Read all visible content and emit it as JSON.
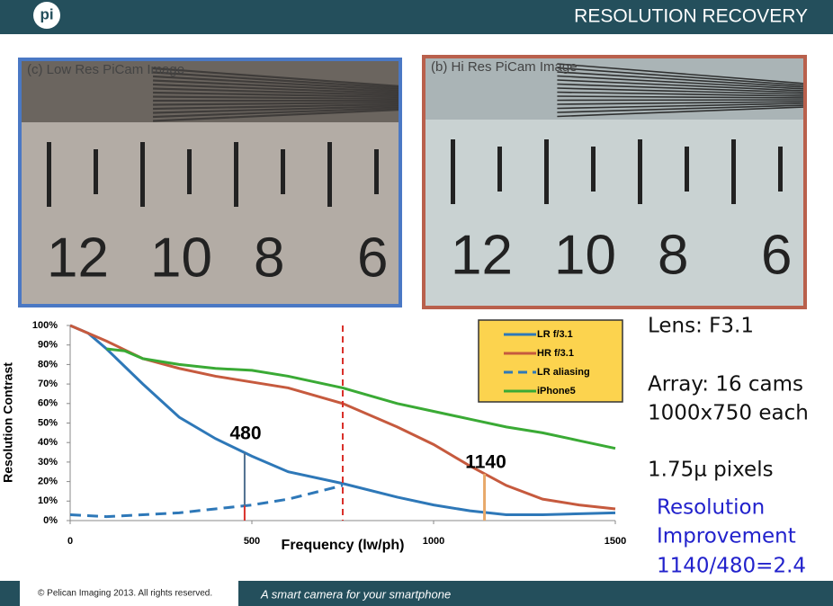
{
  "header": {
    "title": "RESOLUTION RECOVERY",
    "logo": "pi"
  },
  "images": [
    {
      "caption": "(c) Low Res   PiCam Image",
      "border": "#4a78c4",
      "labels": [
        "12",
        "10",
        "8",
        "6"
      ]
    },
    {
      "caption": "(b) Hi Res   PiCam Image",
      "border": "#b9604c",
      "labels": [
        "12",
        "10",
        "8",
        "6"
      ]
    }
  ],
  "chart_data": {
    "type": "line",
    "xlabel": "Frequency (lw/ph)",
    "ylabel": "Resolution Contrast",
    "xlim": [
      0,
      1500
    ],
    "ylim": [
      0,
      100
    ],
    "xticks": [
      0,
      500,
      1000,
      1500
    ],
    "yticks": [
      {
        "value": 0,
        "label": "0%"
      },
      {
        "value": 10,
        "label": "10%"
      },
      {
        "value": 20,
        "label": "20%"
      },
      {
        "value": 30,
        "label": "30%"
      },
      {
        "value": 40,
        "label": "40%"
      },
      {
        "value": 50,
        "label": "50%"
      },
      {
        "value": 60,
        "label": "60%"
      },
      {
        "value": 70,
        "label": "70%"
      },
      {
        "value": 80,
        "label": "80%"
      },
      {
        "value": 90,
        "label": "90%"
      },
      {
        "value": 100,
        "label": "100%"
      }
    ],
    "series": [
      {
        "name": "LR f/3.1",
        "color": "#2e78b8",
        "style": "solid",
        "x": [
          0,
          50,
          100,
          200,
          300,
          400,
          500,
          600,
          750,
          900,
          1000,
          1100,
          1200,
          1300,
          1500
        ],
        "values": [
          100,
          96,
          88,
          70,
          53,
          42,
          33,
          25,
          19,
          12,
          8,
          5,
          3,
          3,
          4
        ]
      },
      {
        "name": "HR f/3.1",
        "color": "#c65a3e",
        "style": "solid",
        "x": [
          0,
          100,
          200,
          300,
          400,
          500,
          600,
          750,
          900,
          1000,
          1100,
          1200,
          1300,
          1400,
          1500
        ],
        "values": [
          100,
          92,
          83,
          78,
          74,
          71,
          68,
          60,
          48,
          39,
          28,
          18,
          11,
          8,
          6
        ]
      },
      {
        "name": "LR aliasing",
        "color": "#2e78b8",
        "style": "dashed",
        "x": [
          0,
          100,
          200,
          300,
          400,
          500,
          600,
          750
        ],
        "values": [
          3,
          2,
          3,
          4,
          6,
          8,
          11,
          18
        ]
      },
      {
        "name": "iPhone5",
        "color": "#3aaa35",
        "style": "solid",
        "x": [
          100,
          150,
          200,
          300,
          400,
          500,
          600,
          750,
          900,
          1000,
          1100,
          1200,
          1300,
          1400,
          1500
        ],
        "values": [
          88,
          87,
          83,
          80,
          78,
          77,
          74,
          68,
          60,
          56,
          52,
          48,
          45,
          41,
          37
        ]
      }
    ],
    "vline": {
      "x": 750,
      "color": "#d9302a"
    },
    "annotations": [
      {
        "text": "480",
        "x": 480,
        "color": "#4f6f8f",
        "lower_color": "#d9302a"
      },
      {
        "text": "1140",
        "x": 1140,
        "color": "#e8a96a"
      }
    ],
    "legend": {
      "color": "#fcd34e"
    }
  },
  "notes": [
    "Lens: F3.1",
    "Array: 16 cams",
    "1000x750 each",
    "1.75µ pixels"
  ],
  "highlight": [
    "Resolution",
    "Improvement",
    "1140/480=2.4"
  ],
  "footer": {
    "copyright": "© Pelican Imaging 2013. All rights reserved.",
    "tagline": "A smart camera for your smartphone"
  }
}
